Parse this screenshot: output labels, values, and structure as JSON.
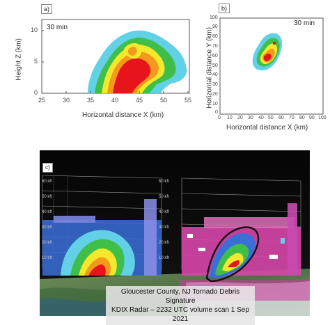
{
  "panels": {
    "a": {
      "label": "a)",
      "time": "30 min",
      "xlabel": "Horizontal distance X (km)",
      "ylabel": "Height Z (km)",
      "xticks": [
        "25",
        "30",
        "35",
        "40",
        "45",
        "50",
        "55"
      ],
      "yticks": [
        "10",
        "5",
        "0"
      ]
    },
    "b": {
      "label": "b)",
      "time": "30 min",
      "xlabel": "Horizontal distance X (km)",
      "ylabel": "Horizontal distance Y (km)",
      "xticks": [
        "0",
        "10",
        "20",
        "30",
        "40",
        "50",
        "60",
        "70",
        "80",
        "90",
        "100"
      ],
      "yticks": [
        "100",
        "90",
        "80",
        "70",
        "60",
        "50",
        "40",
        "30",
        "20",
        "10",
        "0"
      ]
    },
    "c": {
      "label": "c)",
      "left_kft": [
        "60 kft",
        "50 kft",
        "40 kft",
        "30 kft",
        "20 kft",
        "10 kft"
      ],
      "right_kft": [
        "60 kft",
        "50 kft",
        "40 kft",
        "30 kft",
        "20 kft",
        "10 kft"
      ],
      "caption_line1": "Gloucester County, NJ Tornado Debris Signature",
      "caption_line2": "KDIX Radar – 2232 UTC volume scan 1 Sep 2021"
    }
  },
  "colors": {
    "red": "#e8141c",
    "orange": "#f39a1e",
    "yellow": "#f5e82a",
    "green": "#3fbf4a",
    "cyan": "#62d0e6",
    "blue": "#3a6fd8"
  }
}
